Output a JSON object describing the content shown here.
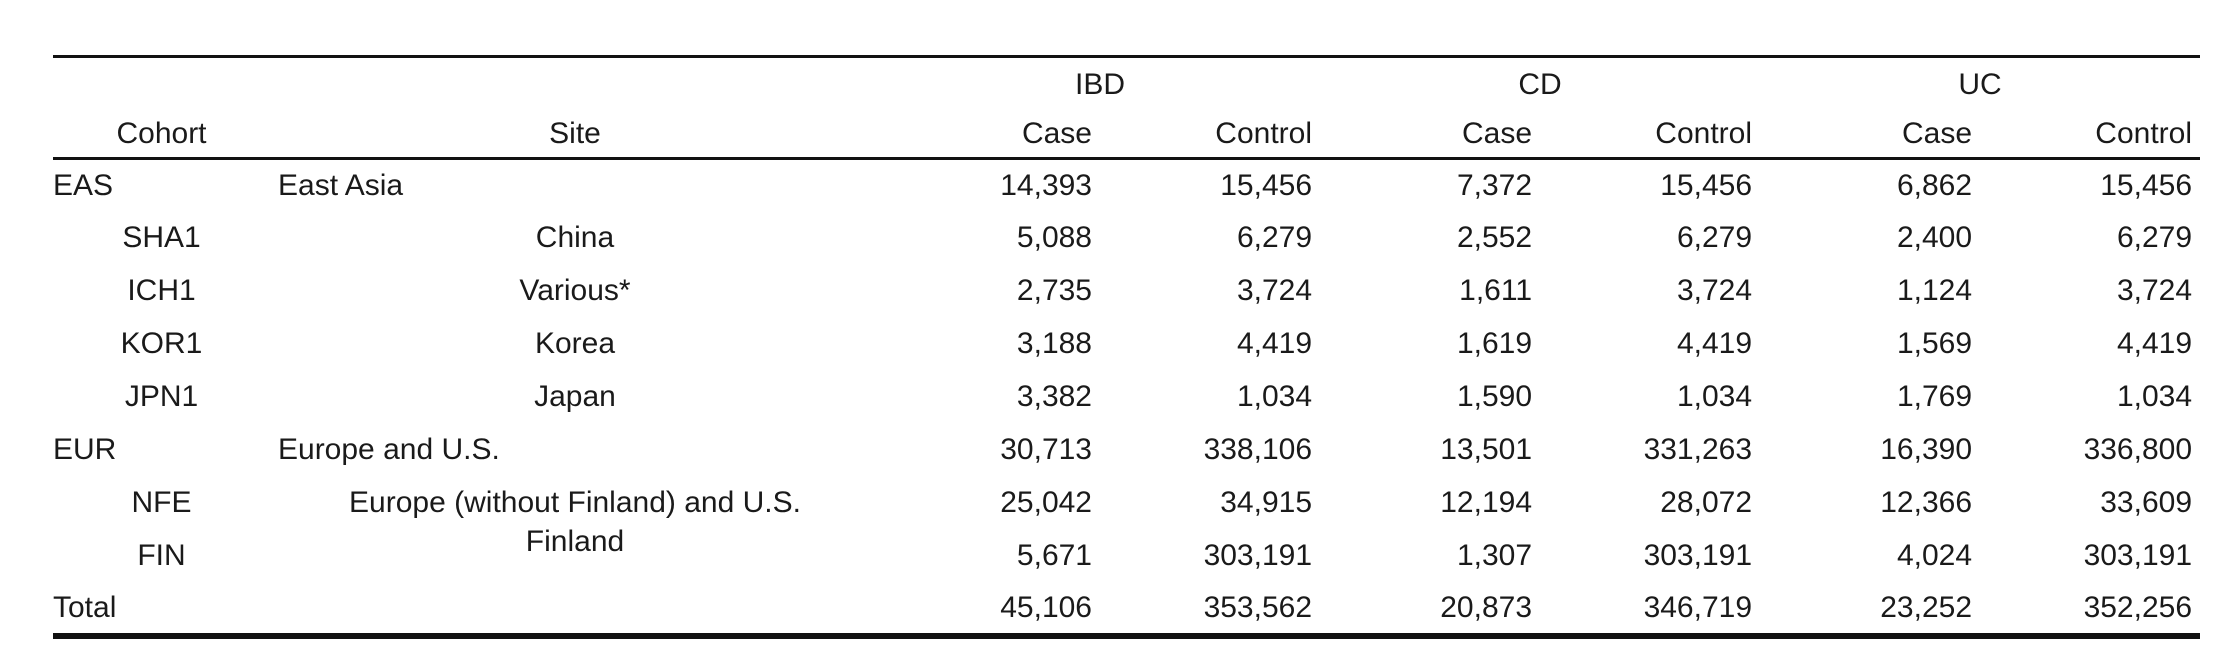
{
  "table": {
    "group_headers": {
      "ibd": "IBD",
      "cd": "CD",
      "uc": "UC"
    },
    "column_headers": {
      "cohort": "Cohort",
      "site": "Site",
      "case": "Case",
      "control": "Control"
    },
    "rows": [
      {
        "cohort": "EAS",
        "site": "East Asia",
        "values": [
          "14,393",
          "15,456",
          "7,372",
          "15,456",
          "6,862",
          "15,456"
        ]
      },
      {
        "cohort": "SHA1",
        "site": "China",
        "values": [
          "5,088",
          "6,279",
          "2,552",
          "6,279",
          "2,400",
          "6,279"
        ]
      },
      {
        "cohort": "ICH1",
        "site": "Various*",
        "values": [
          "2,735",
          "3,724",
          "1,611",
          "3,724",
          "1,124",
          "3,724"
        ]
      },
      {
        "cohort": "KOR1",
        "site": "Korea",
        "values": [
          "3,188",
          "4,419",
          "1,619",
          "4,419",
          "1,569",
          "4,419"
        ]
      },
      {
        "cohort": "JPN1",
        "site": "Japan",
        "values": [
          "3,382",
          "1,034",
          "1,590",
          "1,034",
          "1,769",
          "1,034"
        ]
      },
      {
        "cohort": "EUR",
        "site": "Europe and U.S.",
        "values": [
          "30,713",
          "338,106",
          "13,501",
          "331,263",
          "16,390",
          "336,800"
        ]
      },
      {
        "cohort": "NFE",
        "site": "Europe (without Finland) and U.S.",
        "values": [
          "25,042",
          "34,915",
          "12,194",
          "28,072",
          "12,366",
          "33,609"
        ]
      },
      {
        "cohort": "FIN",
        "site": "Finland",
        "values": [
          "5,671",
          "303,191",
          "1,307",
          "303,191",
          "4,024",
          "303,191"
        ]
      },
      {
        "cohort": "Total",
        "site": "",
        "values": [
          "45,106",
          "353,562",
          "20,873",
          "346,719",
          "23,252",
          "352,256"
        ]
      }
    ]
  },
  "colors": {
    "text": "#1a1a1a",
    "rule": "#111111",
    "background": "#ffffff"
  }
}
